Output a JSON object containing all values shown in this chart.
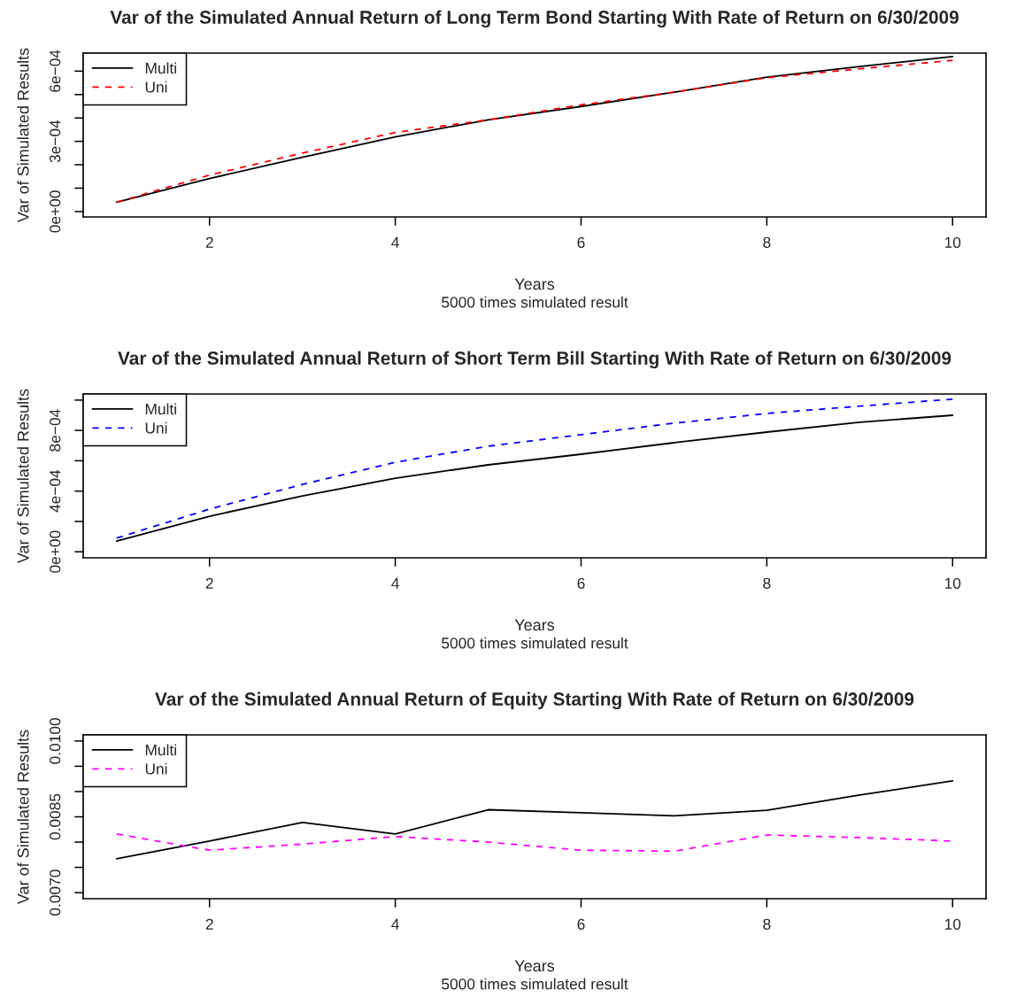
{
  "chart_data": [
    {
      "type": "line",
      "title": "Var of the Simulated Annual Return of Long Term Bond Starting With Rate of Return on 6/30/2009",
      "xlabel": "Years",
      "ylabel": "Var of Simulated Results",
      "annotations": [
        "5000 times simulated result"
      ],
      "x": [
        1,
        2,
        3,
        4,
        5,
        6,
        7,
        8,
        9,
        10
      ],
      "series": [
        {
          "name": "Multi",
          "color": "#000000",
          "line_style": "solid",
          "values": [
            4e-05,
            0.000141,
            0.000232,
            0.000319,
            0.000392,
            0.000449,
            0.00051,
            0.000574,
            0.00062,
            0.000662
          ]
        },
        {
          "name": "Uni",
          "color": "#ff0000",
          "line_style": "dashed",
          "values": [
            4e-05,
            0.000156,
            0.00025,
            0.000338,
            0.000392,
            0.000456,
            0.00051,
            0.000572,
            0.00061,
            0.000646
          ]
        }
      ],
      "xlim": [
        0.64,
        10.36
      ],
      "xticks": [
        2,
        4,
        6,
        8,
        10
      ],
      "ylim": [
        -2.3e-05,
        0.000677
      ],
      "yticks": [
        {
          "value": 0,
          "label": "0e+00"
        },
        {
          "value": 0.0001,
          "label": null
        },
        {
          "value": 0.0002,
          "label": null
        },
        {
          "value": 0.0003,
          "label": "3e−04"
        },
        {
          "value": 0.0004,
          "label": null
        },
        {
          "value": 0.0005,
          "label": null
        },
        {
          "value": 0.0006,
          "label": "6e−04"
        }
      ],
      "grid": false,
      "legend": "top left"
    },
    {
      "type": "line",
      "title": "Var of the Simulated Annual Return of Short Term Bill Starting With Rate of Return on 6/30/2009",
      "xlabel": "Years",
      "ylabel": "Var of Simulated Results",
      "annotations": [
        "5000 times simulated result"
      ],
      "x": [
        1,
        2,
        3,
        4,
        5,
        6,
        7,
        8,
        9,
        10
      ],
      "series": [
        {
          "name": "Multi",
          "color": "#000000",
          "line_style": "solid",
          "values": [
            7e-05,
            0.000234,
            0.000368,
            0.000485,
            0.000573,
            0.000643,
            0.000719,
            0.000789,
            0.000854,
            0.0009
          ]
        },
        {
          "name": "Uni",
          "color": "#0000ff",
          "line_style": "dashed",
          "values": [
            9e-05,
            0.000281,
            0.000444,
            0.00059,
            0.000696,
            0.000772,
            0.000848,
            0.000912,
            0.00096,
            0.001006
          ]
        }
      ],
      "xlim": [
        0.64,
        10.36
      ],
      "xticks": [
        2,
        4,
        6,
        8,
        10
      ],
      "ylim": [
        -4e-05,
        0.00104
      ],
      "yticks": [
        {
          "value": 0,
          "label": "0e+00"
        },
        {
          "value": 0.0002,
          "label": null
        },
        {
          "value": 0.0004,
          "label": "4e−04"
        },
        {
          "value": 0.0006,
          "label": null
        },
        {
          "value": 0.0008,
          "label": "8e−04"
        },
        {
          "value": 0.001,
          "label": null
        }
      ],
      "grid": false,
      "legend": "top left"
    },
    {
      "type": "line",
      "title": "Var of the Simulated Annual Return of Equity Starting With Rate of Return on 6/30/2009",
      "xlabel": "Years",
      "ylabel": "Var of Simulated Results",
      "annotations": [
        "5000 times simulated result"
      ],
      "x": [
        1,
        2,
        3,
        4,
        5,
        6,
        7,
        8,
        9,
        10
      ],
      "series": [
        {
          "name": "Multi",
          "color": "#000000",
          "line_style": "solid",
          "values": [
            0.00767,
            0.00802,
            0.00839,
            0.00816,
            0.00864,
            0.00858,
            0.00852,
            0.00863,
            0.00893,
            0.00921
          ]
        },
        {
          "name": "Uni",
          "color": "#ff00ff",
          "line_style": "dashed",
          "values": [
            0.00816,
            0.00784,
            0.00796,
            0.00811,
            0.008,
            0.00784,
            0.00782,
            0.00814,
            0.00809,
            0.00802
          ]
        }
      ],
      "xlim": [
        0.64,
        10.36
      ],
      "xticks": [
        2,
        4,
        6,
        8,
        10
      ],
      "ylim": [
        0.00688,
        0.01012
      ],
      "yticks": [
        {
          "value": 0.007,
          "label": "0.0070"
        },
        {
          "value": 0.0075,
          "label": null
        },
        {
          "value": 0.008,
          "label": null
        },
        {
          "value": 0.0085,
          "label": "0.0085"
        },
        {
          "value": 0.009,
          "label": null
        },
        {
          "value": 0.0095,
          "label": null
        },
        {
          "value": 0.01,
          "label": "0.0100"
        }
      ],
      "grid": false,
      "legend": "top left"
    }
  ]
}
